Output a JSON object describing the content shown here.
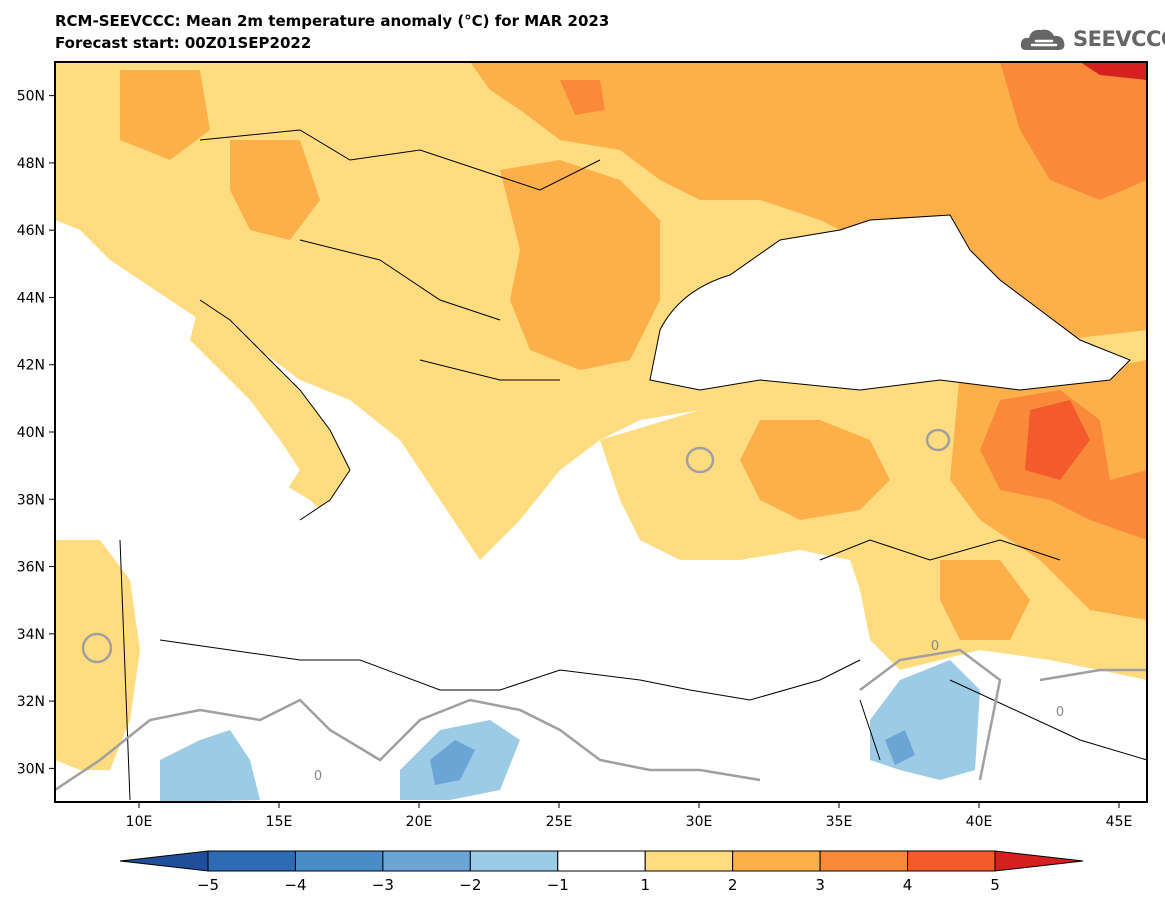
{
  "header": {
    "title": "RCM-SEEVCCC: Mean 2m temperature anomaly (°C) for MAR 2023",
    "subtitle": "Forecast start: 00Z01SEP2022",
    "logo_text": "SEEVCCC"
  },
  "map": {
    "lon_range": [
      7,
      46
    ],
    "lat_range": [
      29,
      51
    ],
    "lon_ticks": [
      "10E",
      "15E",
      "20E",
      "25E",
      "30E",
      "35E",
      "40E",
      "45E"
    ],
    "lat_ticks": [
      "50N",
      "48N",
      "46N",
      "44N",
      "42N",
      "40N",
      "38N",
      "36N",
      "34N",
      "32N",
      "30N"
    ],
    "contour_label": "0"
  },
  "legend": {
    "colors": [
      "#1f4e9a",
      "#2f6ab4",
      "#4a8cc8",
      "#6aa5d5",
      "#9ccbe6",
      "#ffffff",
      "#ffdc80",
      "#fdb04a",
      "#fa8a3a",
      "#f35a2c",
      "#d62020"
    ],
    "labels": [
      "−5",
      "−4",
      "−3",
      "−2",
      "−1",
      "1",
      "2",
      "3",
      "4",
      "5"
    ]
  }
}
